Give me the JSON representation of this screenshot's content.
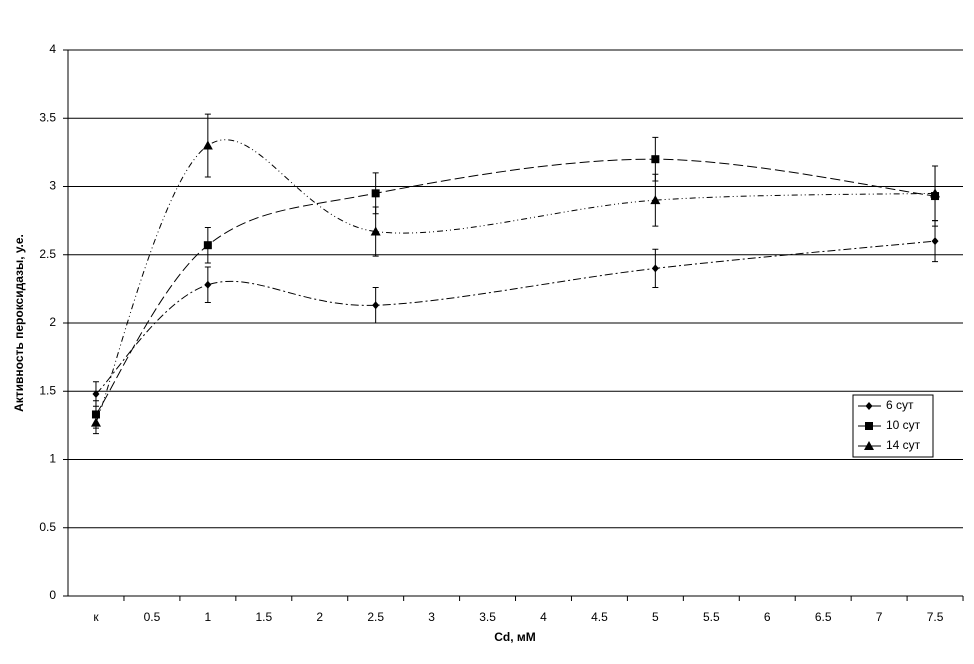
{
  "chart_data": {
    "type": "line",
    "x_label": "Cd, мМ",
    "y_label": "Активность пероксидазы, у.е.",
    "x": [
      0,
      1,
      2.5,
      5,
      7.5
    ],
    "xlim": [
      -0.25,
      7.75
    ],
    "xticks": [
      {
        "value": 0,
        "label": "к"
      },
      0.5,
      1,
      1.5,
      2,
      2.5,
      3,
      3.5,
      4,
      4.5,
      5,
      5.5,
      6,
      6.5,
      7,
      7.5
    ],
    "ylim": [
      0,
      4
    ],
    "yticks": [
      0,
      0.5,
      1,
      1.5,
      2,
      2.5,
      3,
      3.5,
      4
    ],
    "grid": true,
    "legend": "right",
    "series": [
      {
        "name": "6 сут",
        "color": "#000000",
        "marker": "diamond",
        "values": [
          1.48,
          2.28,
          2.13,
          2.4,
          2.6
        ],
        "errors": [
          0.09,
          0.13,
          0.13,
          0.14,
          0.15
        ]
      },
      {
        "name": "10 сут",
        "color": "#000000",
        "marker": "square",
        "values": [
          1.33,
          2.57,
          2.95,
          3.2,
          2.93
        ],
        "errors": [
          0.1,
          0.13,
          0.15,
          0.16,
          0.22
        ]
      },
      {
        "name": "14 сут",
        "color": "#000000",
        "marker": "triangle",
        "values": [
          1.27,
          3.3,
          2.67,
          2.9,
          2.95
        ],
        "errors": [
          0.08,
          0.23,
          0.18,
          0.19,
          0.2
        ]
      }
    ]
  }
}
